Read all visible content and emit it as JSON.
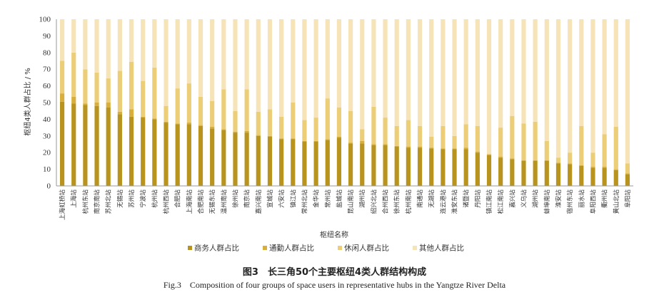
{
  "caption": {
    "chinese": "图3　长三角50个主要枢纽4类人群结构构成",
    "english": "Fig.3　Composition of four groups of space users in representative hubs in the Yangtze River Delta"
  },
  "colors": {
    "business": "#b8941f",
    "commute": "#d8ae3c",
    "leisure": "#ecce78",
    "other": "#f6e4b8",
    "axis": "#999999",
    "text": "#333333"
  },
  "chart_data": {
    "type": "bar",
    "stacked": true,
    "title": "",
    "xlabel": "枢纽名称",
    "ylabel": "枢纽4类人群占比 / %",
    "ylim": [
      0,
      100
    ],
    "yticks": [
      0,
      10,
      20,
      30,
      40,
      50,
      60,
      70,
      80,
      90,
      100
    ],
    "grid": false,
    "legend_position": "bottom",
    "categories": [
      "上海虹桥站",
      "上海站",
      "杭州东站",
      "南京南站",
      "苏州北站",
      "无锡站",
      "苏州站",
      "宁波站",
      "杭州站",
      "杭州西站",
      "合肥站",
      "上海南站",
      "合肥南站",
      "无锡东站",
      "温州南站",
      "徐州站",
      "南京站",
      "嘉兴南站",
      "宣城站",
      "六安站",
      "镇江站",
      "常州北站",
      "金华站",
      "常州站",
      "盐城站",
      "昆山南站",
      "湖州站",
      "绍兴北站",
      "合州西站",
      "徐州东站",
      "杭州南站",
      "南通站",
      "无湖站",
      "连云港站",
      "淮安东站",
      "诸暨站",
      "丹阳站",
      "镇江南站",
      "松江南站",
      "嘉兴站",
      "义乌站",
      "湖州站",
      "蚌埠南站",
      "淮安站",
      "宿州东站",
      "丽水站",
      "阜阳西站",
      "衢州站",
      "黄山北站",
      "阜阳站"
    ],
    "series": [
      {
        "name": "商务人群占比",
        "values": [
          50.5,
          49.5,
          48.5,
          48,
          47,
          43,
          41.5,
          41,
          40,
          38,
          37,
          37,
          36,
          34.5,
          33.5,
          32,
          32,
          30,
          29.5,
          28,
          28,
          26.5,
          26.5,
          27.5,
          29,
          25.5,
          25.5,
          24.5,
          24.5,
          23.5,
          23,
          23,
          22.5,
          22,
          22,
          22,
          20,
          18.5,
          17,
          16,
          15,
          15,
          15,
          13.5,
          13,
          12,
          11,
          11,
          9.5,
          7
        ]
      },
      {
        "name": "通勤人群占比",
        "values": [
          5,
          4,
          1,
          2,
          3,
          1.5,
          4.5,
          0.5,
          0.5,
          0.5,
          0.5,
          1,
          0.5,
          1,
          0.5,
          0.5,
          1,
          0.5,
          0.5,
          0.5,
          0.5,
          0.5,
          0.5,
          0.5,
          0.5,
          0.5,
          1.5,
          0.5,
          0.5,
          0.5,
          0.5,
          0.5,
          0.5,
          0.5,
          0.5,
          1,
          0.5,
          0.5,
          0.5,
          0.5,
          0.5,
          0.5,
          0.5,
          0.5,
          0.5,
          0.5,
          0.5,
          0.5,
          0.5,
          0.5
        ]
      },
      {
        "name": "休闲人群占比",
        "values": [
          19.5,
          26.5,
          20.5,
          18,
          14.5,
          24.5,
          28.5,
          21.5,
          30.5,
          9.5,
          21,
          23.5,
          17,
          15.5,
          24,
          12.5,
          25,
          14,
          16,
          13,
          21.5,
          12.5,
          14,
          24.5,
          17.5,
          19,
          7,
          22.5,
          16,
          12,
          16,
          12.5,
          6.5,
          13.5,
          7.5,
          14,
          15.5,
          0,
          17.5,
          25.5,
          22,
          23,
          11.5,
          3,
          6.5,
          23.5,
          8.5,
          19.5,
          25.5,
          6
        ]
      },
      {
        "name": "其他人群占比",
        "values": [
          25,
          20,
          30,
          32,
          35.5,
          31,
          25.5,
          37,
          29,
          52,
          41.5,
          38.5,
          46.5,
          49,
          42,
          55,
          42,
          55.5,
          54,
          58.5,
          50,
          60.5,
          59,
          47.5,
          53,
          55,
          66,
          52.5,
          59,
          64,
          60.5,
          64,
          70.5,
          64,
          70,
          63,
          64,
          81,
          65,
          58,
          62.5,
          61.5,
          73,
          83,
          80,
          64,
          80,
          69,
          64.5,
          86.5
        ]
      }
    ]
  }
}
